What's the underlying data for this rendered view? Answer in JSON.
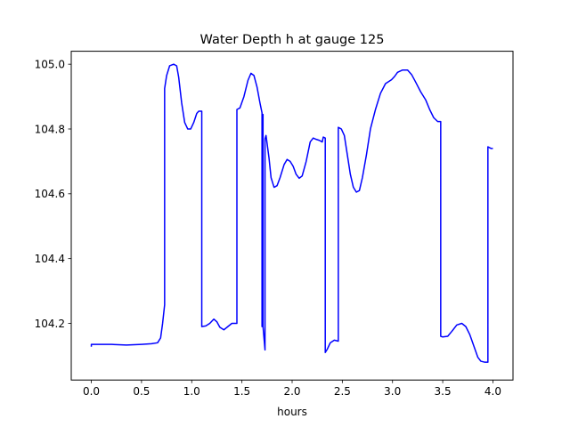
{
  "chart_data": {
    "type": "line",
    "title": "Water Depth h at gauge 125",
    "xlabel": "hours",
    "ylabel": "",
    "xlim": [
      -0.2,
      4.2
    ],
    "ylim": [
      104.025,
      105.04
    ],
    "grid": false,
    "legend": "none",
    "x_ticks": [
      {
        "value": 0.0,
        "label": "0.0"
      },
      {
        "value": 0.5,
        "label": "0.5"
      },
      {
        "value": 1.0,
        "label": "1.0"
      },
      {
        "value": 1.5,
        "label": "1.5"
      },
      {
        "value": 2.0,
        "label": "2.0"
      },
      {
        "value": 2.5,
        "label": "2.5"
      },
      {
        "value": 3.0,
        "label": "3.0"
      },
      {
        "value": 3.5,
        "label": "3.5"
      },
      {
        "value": 4.0,
        "label": "4.0"
      }
    ],
    "y_ticks": [
      {
        "value": 104.2,
        "label": "104.2"
      },
      {
        "value": 104.4,
        "label": "104.4"
      },
      {
        "value": 104.6,
        "label": "104.6"
      },
      {
        "value": 104.8,
        "label": "104.8"
      },
      {
        "value": 105.0,
        "label": "105.0"
      }
    ],
    "series": [
      {
        "color": "#0000ff",
        "points": [
          [
            0.0,
            104.128
          ],
          [
            0.0,
            104.135
          ],
          [
            0.1,
            104.135
          ],
          [
            0.2,
            104.135
          ],
          [
            0.35,
            104.133
          ],
          [
            0.5,
            104.135
          ],
          [
            0.6,
            104.137
          ],
          [
            0.66,
            104.14
          ],
          [
            0.69,
            104.155
          ],
          [
            0.71,
            104.2
          ],
          [
            0.73,
            104.257
          ],
          [
            0.73,
            104.925
          ],
          [
            0.75,
            104.965
          ],
          [
            0.78,
            104.995
          ],
          [
            0.82,
            105.0
          ],
          [
            0.85,
            104.995
          ],
          [
            0.87,
            104.96
          ],
          [
            0.9,
            104.88
          ],
          [
            0.93,
            104.82
          ],
          [
            0.96,
            104.8
          ],
          [
            0.99,
            104.8
          ],
          [
            1.02,
            104.82
          ],
          [
            1.05,
            104.848
          ],
          [
            1.07,
            104.855
          ],
          [
            1.1,
            104.855
          ],
          [
            1.1,
            104.19
          ],
          [
            1.14,
            104.192
          ],
          [
            1.18,
            104.2
          ],
          [
            1.22,
            104.213
          ],
          [
            1.25,
            104.205
          ],
          [
            1.28,
            104.188
          ],
          [
            1.32,
            104.18
          ],
          [
            1.36,
            104.19
          ],
          [
            1.4,
            104.2
          ],
          [
            1.45,
            104.2
          ],
          [
            1.45,
            104.86
          ],
          [
            1.48,
            104.865
          ],
          [
            1.52,
            104.9
          ],
          [
            1.56,
            104.95
          ],
          [
            1.59,
            104.972
          ],
          [
            1.62,
            104.965
          ],
          [
            1.65,
            104.93
          ],
          [
            1.68,
            104.88
          ],
          [
            1.7,
            104.85
          ],
          [
            1.7,
            104.19
          ],
          [
            1.71,
            104.845
          ],
          [
            1.71,
            104.19
          ],
          [
            1.73,
            104.118
          ],
          [
            1.73,
            104.77
          ],
          [
            1.74,
            104.78
          ],
          [
            1.77,
            104.71
          ],
          [
            1.79,
            104.65
          ],
          [
            1.82,
            104.62
          ],
          [
            1.85,
            104.625
          ],
          [
            1.88,
            104.65
          ],
          [
            1.92,
            104.69
          ],
          [
            1.95,
            104.706
          ],
          [
            1.98,
            104.7
          ],
          [
            2.01,
            104.685
          ],
          [
            2.04,
            104.66
          ],
          [
            2.07,
            104.648
          ],
          [
            2.1,
            104.655
          ],
          [
            2.14,
            104.7
          ],
          [
            2.18,
            104.76
          ],
          [
            2.21,
            104.772
          ],
          [
            2.24,
            104.768
          ],
          [
            2.27,
            104.765
          ],
          [
            2.3,
            104.76
          ],
          [
            2.31,
            104.775
          ],
          [
            2.33,
            104.772
          ],
          [
            2.33,
            104.11
          ],
          [
            2.35,
            104.12
          ],
          [
            2.38,
            104.14
          ],
          [
            2.42,
            104.148
          ],
          [
            2.46,
            104.145
          ],
          [
            2.46,
            104.805
          ],
          [
            2.49,
            104.8
          ],
          [
            2.52,
            104.78
          ],
          [
            2.55,
            104.72
          ],
          [
            2.58,
            104.66
          ],
          [
            2.61,
            104.62
          ],
          [
            2.64,
            104.605
          ],
          [
            2.67,
            104.61
          ],
          [
            2.7,
            104.65
          ],
          [
            2.74,
            104.72
          ],
          [
            2.78,
            104.8
          ],
          [
            2.83,
            104.86
          ],
          [
            2.88,
            104.91
          ],
          [
            2.93,
            104.94
          ],
          [
            2.99,
            104.952
          ],
          [
            3.02,
            104.962
          ],
          [
            3.05,
            104.975
          ],
          [
            3.1,
            104.982
          ],
          [
            3.15,
            104.982
          ],
          [
            3.19,
            104.968
          ],
          [
            3.23,
            104.945
          ],
          [
            3.28,
            104.915
          ],
          [
            3.33,
            104.89
          ],
          [
            3.37,
            104.86
          ],
          [
            3.41,
            104.835
          ],
          [
            3.45,
            104.823
          ],
          [
            3.48,
            104.823
          ],
          [
            3.48,
            104.16
          ],
          [
            3.5,
            104.158
          ],
          [
            3.55,
            104.16
          ],
          [
            3.59,
            104.175
          ],
          [
            3.64,
            104.195
          ],
          [
            3.69,
            104.2
          ],
          [
            3.73,
            104.19
          ],
          [
            3.77,
            104.165
          ],
          [
            3.81,
            104.13
          ],
          [
            3.85,
            104.095
          ],
          [
            3.88,
            104.083
          ],
          [
            3.92,
            104.08
          ],
          [
            3.95,
            104.08
          ],
          [
            3.95,
            104.745
          ],
          [
            3.98,
            104.74
          ],
          [
            4.0,
            104.74
          ]
        ]
      }
    ]
  }
}
